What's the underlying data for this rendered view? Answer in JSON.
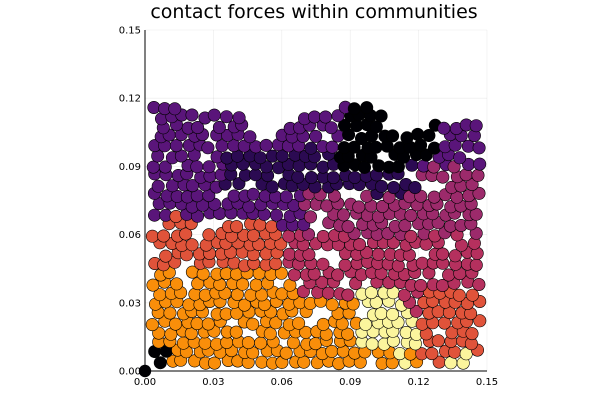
{
  "chart_data": {
    "type": "scatter",
    "title": "contact forces within communities",
    "xlabel": "",
    "ylabel": "",
    "xlim": [
      0,
      0.15
    ],
    "ylim": [
      0,
      0.15
    ],
    "xticks": [
      "0.00",
      "0.03",
      "0.06",
      "0.09",
      "0.12",
      "0.15"
    ],
    "yticks": [
      "0.00",
      "0.03",
      "0.06",
      "0.09",
      "0.12",
      "0.15"
    ],
    "xtick_values": [
      0,
      0.03,
      0.06,
      0.09,
      0.12,
      0.15
    ],
    "ytick_values": [
      0,
      0.03,
      0.06,
      0.09,
      0.12,
      0.15
    ],
    "grid": true,
    "legend": "none",
    "aspect": "equal",
    "colormap": "inferno",
    "palette": {
      "black": "#000004",
      "dark_purple": "#2b0a52",
      "purple": "#5a157a",
      "magenta": "#9c2a6b",
      "crimson": "#b5305e",
      "red_orange": "#e0533a",
      "orange": "#f98e0a",
      "yellow": "#fbf59d"
    },
    "marker": "circle",
    "marker_color_note": "points colored by community (inferno colormap)",
    "regions": [
      {
        "community": "upper band",
        "color": "purple",
        "x_range": [
          0.0,
          0.15
        ],
        "y_range": [
          0.075,
          0.12
        ]
      },
      {
        "community": "upper-left",
        "color": "purple",
        "x_range": [
          0.0,
          0.06
        ],
        "y_range": [
          0.065,
          0.12
        ]
      },
      {
        "community": "upper-middle",
        "color": "dark_purple",
        "x_range": [
          0.035,
          0.12
        ],
        "y_range": [
          0.078,
          0.098
        ]
      },
      {
        "community": "top black cluster",
        "color": "black",
        "x_range": [
          0.085,
          0.13
        ],
        "y_range": [
          0.09,
          0.11
        ]
      },
      {
        "community": "middle right",
        "color": "magenta",
        "x_range": [
          0.07,
          0.15
        ],
        "y_range": [
          0.045,
          0.09
        ]
      },
      {
        "community": "left middle",
        "color": "red_orange",
        "x_range": [
          0.0,
          0.06
        ],
        "y_range": [
          0.04,
          0.068
        ]
      },
      {
        "community": "middle crimson",
        "color": "crimson",
        "x_range": [
          0.03,
          0.15
        ],
        "y_range": [
          0.02,
          0.06
        ]
      },
      {
        "community": "bottom left",
        "color": "orange",
        "x_range": [
          0.0,
          0.065
        ],
        "y_range": [
          0.005,
          0.045
        ]
      },
      {
        "community": "bottom middle",
        "color": "orange",
        "x_range": [
          0.04,
          0.13
        ],
        "y_range": [
          0.005,
          0.04
        ]
      },
      {
        "community": "bottom right yellow",
        "color": "yellow",
        "x_range": [
          0.095,
          0.12
        ],
        "y_range": [
          0.01,
          0.035
        ]
      },
      {
        "community": "bottom right",
        "color": "red_orange",
        "x_range": [
          0.12,
          0.15
        ],
        "y_range": [
          0.005,
          0.035
        ]
      },
      {
        "community": "corner",
        "color": "black",
        "x_range": [
          0.0,
          0.012
        ],
        "y_range": [
          0.0,
          0.01
        ]
      }
    ],
    "points_approx_count": 520
  }
}
